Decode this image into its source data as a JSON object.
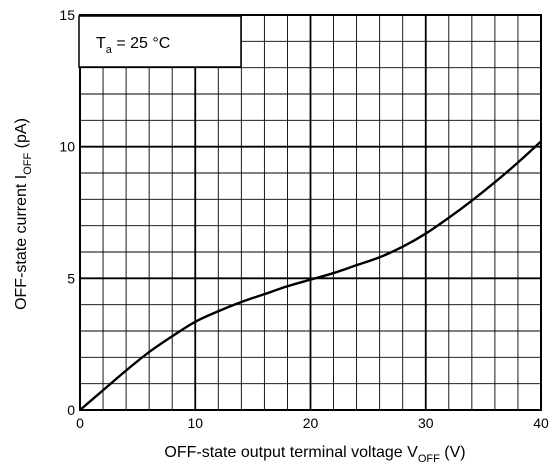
{
  "chart_data": {
    "type": "line",
    "title": "",
    "xlabel": {
      "main": "OFF-state output terminal voltage V",
      "sub": "OFF",
      "unit": " (V)"
    },
    "ylabel": {
      "main": "OFF-state current   I",
      "sub": "OFF",
      "unit": " (pA)"
    },
    "xlim": [
      0,
      40
    ],
    "ylim": [
      0,
      15
    ],
    "x_ticks": [
      {
        "value": 0,
        "label": "0"
      },
      {
        "value": 10,
        "label": "10"
      },
      {
        "value": 20,
        "label": "20"
      },
      {
        "value": 30,
        "label": "30"
      },
      {
        "value": 40,
        "label": "40"
      }
    ],
    "y_ticks": [
      {
        "value": 0,
        "label": "0"
      },
      {
        "value": 5,
        "label": "5"
      },
      {
        "value": 10,
        "label": "10"
      },
      {
        "value": 15,
        "label": "15"
      }
    ],
    "grid": true,
    "grid_minor_x_step": 2,
    "grid_minor_y_step": 1,
    "annotation": {
      "main": "T",
      "sub": "a",
      "rest": " = 25 °C"
    },
    "series": [
      {
        "x": [
          0,
          2,
          4,
          6,
          8,
          10,
          12,
          14,
          16,
          18,
          20,
          22,
          24,
          26,
          28,
          30,
          32,
          34,
          36,
          38,
          40
        ],
        "y": [
          0,
          0.75,
          1.5,
          2.2,
          2.8,
          3.35,
          3.75,
          4.1,
          4.4,
          4.7,
          4.95,
          5.2,
          5.5,
          5.8,
          6.2,
          6.7,
          7.3,
          7.95,
          8.65,
          9.4,
          10.2
        ]
      }
    ]
  }
}
